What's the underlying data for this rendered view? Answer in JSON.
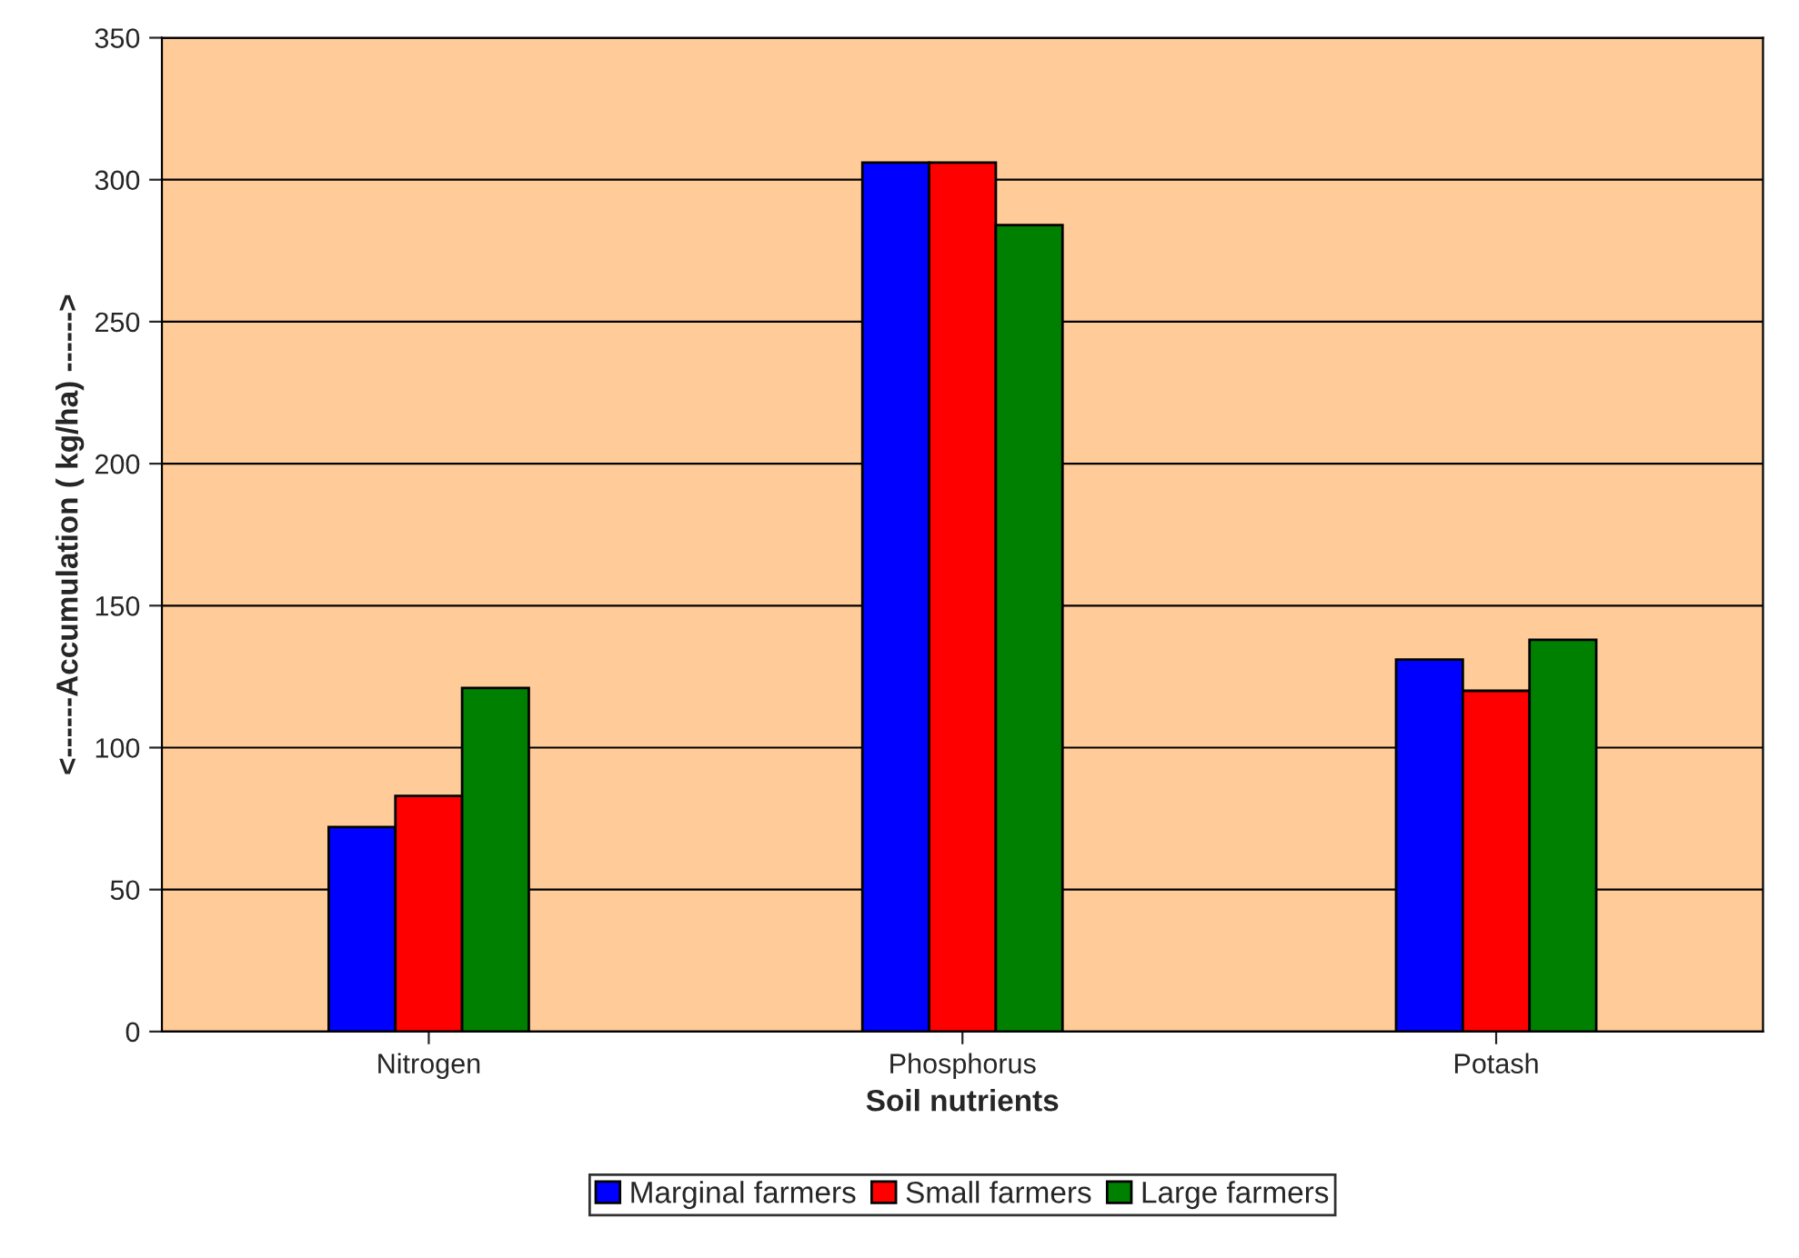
{
  "chart_data": {
    "type": "bar",
    "xlabel": "Soil nutrients",
    "ylabel": "<------Accumulation ( kg/ha) ------>",
    "categories": [
      "Nitrogen",
      "Phosphorus",
      "Potash"
    ],
    "series": [
      {
        "name": "Marginal farmers",
        "color": "#0000ff",
        "values": [
          72,
          306,
          131
        ]
      },
      {
        "name": "Small farmers",
        "color": "#ff0000",
        "values": [
          83,
          306,
          120
        ]
      },
      {
        "name": "Large farmers",
        "color": "#008000",
        "values": [
          121,
          284,
          138
        ]
      }
    ],
    "ylim": [
      0,
      350
    ],
    "yticks": [
      0,
      50,
      100,
      150,
      200,
      250,
      300,
      350
    ],
    "grid": "y",
    "legend": "bottom"
  }
}
